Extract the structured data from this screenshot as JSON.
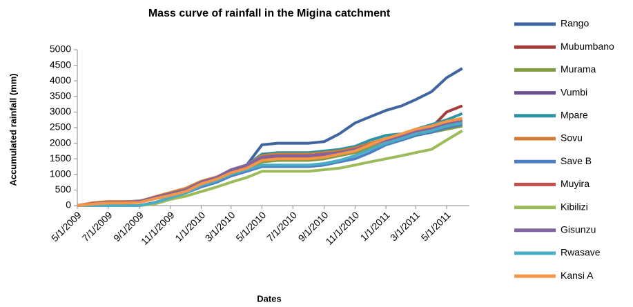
{
  "chart_data": {
    "type": "line",
    "title": "Mass curve of rainfall in the Migina catchment",
    "x_label": "Dates",
    "y_label": "Accumulated rainfall (mm)",
    "x": [
      "5/1/2009",
      "6/1/2009",
      "7/1/2009",
      "8/1/2009",
      "9/1/2009",
      "10/1/2009",
      "11/1/2009",
      "12/1/2009",
      "1/1/2010",
      "2/1/2010",
      "3/1/2010",
      "4/1/2010",
      "5/1/2010",
      "6/1/2010",
      "7/1/2010",
      "8/1/2010",
      "9/1/2010",
      "10/1/2010",
      "11/1/2010",
      "12/1/2010",
      "1/1/2011",
      "2/1/2011",
      "3/1/2011",
      "4/1/2011",
      "5/1/2011",
      "6/1/2011"
    ],
    "xlim": [
      "5/1/2009",
      "6/15/2011"
    ],
    "xticks": [
      "5/1/2009",
      "7/1/2009",
      "9/1/2009",
      "11/1/2009",
      "1/1/2010",
      "3/1/2010",
      "5/1/2010",
      "7/1/2010",
      "9/1/2010",
      "11/1/2010",
      "1/1/2011",
      "3/1/2011",
      "5/1/2011"
    ],
    "ylim": [
      0,
      5000
    ],
    "yticks": [
      0,
      500,
      1000,
      1500,
      2000,
      2500,
      3000,
      3500,
      4000,
      4500,
      5000
    ],
    "grid": false,
    "legend": "right",
    "series": [
      {
        "name": "Rango",
        "color": "#3f65a0",
        "values": [
          0,
          80,
          120,
          120,
          150,
          250,
          350,
          500,
          700,
          850,
          1100,
          1300,
          1950,
          2000,
          2000,
          2000,
          2050,
          2300,
          2650,
          2850,
          3050,
          3200,
          3400,
          3650,
          4100,
          4400
        ]
      },
      {
        "name": "Mubumbano",
        "color": "#a43d3a",
        "values": [
          0,
          60,
          100,
          100,
          120,
          250,
          350,
          450,
          700,
          850,
          1050,
          1250,
          1550,
          1600,
          1600,
          1600,
          1650,
          1700,
          1800,
          1950,
          2100,
          2200,
          2350,
          2500,
          3000,
          3200
        ]
      },
      {
        "name": "Murama",
        "color": "#7f9a3f",
        "values": [
          0,
          50,
          90,
          90,
          110,
          220,
          320,
          420,
          650,
          800,
          1000,
          1150,
          1400,
          1450,
          1450,
          1450,
          1500,
          1600,
          1700,
          1850,
          2000,
          2100,
          2250,
          2350,
          2450,
          2550
        ]
      },
      {
        "name": "Vumbi",
        "color": "#6b5090",
        "values": [
          0,
          60,
          100,
          100,
          120,
          240,
          350,
          480,
          720,
          880,
          1100,
          1250,
          1500,
          1550,
          1550,
          1550,
          1600,
          1700,
          1800,
          1950,
          2100,
          2200,
          2350,
          2450,
          2550,
          2650
        ]
      },
      {
        "name": "Mpare",
        "color": "#2e93a3",
        "values": [
          0,
          80,
          120,
          120,
          130,
          250,
          400,
          500,
          750,
          900,
          1150,
          1300,
          1650,
          1700,
          1700,
          1700,
          1750,
          1800,
          1900,
          2100,
          2250,
          2300,
          2450,
          2600,
          2750,
          2950
        ]
      },
      {
        "name": "Sovu",
        "color": "#d27b32",
        "values": [
          0,
          90,
          130,
          130,
          140,
          280,
          420,
          550,
          780,
          920,
          1150,
          1300,
          1600,
          1650,
          1650,
          1650,
          1700,
          1750,
          1850,
          2000,
          2150,
          2250,
          2400,
          2500,
          2650,
          2750
        ]
      },
      {
        "name": "Save B",
        "color": "#4c7ec4",
        "values": [
          0,
          0,
          0,
          0,
          0,
          100,
          250,
          400,
          600,
          750,
          950,
          1100,
          1250,
          1250,
          1250,
          1250,
          1300,
          1400,
          1500,
          1700,
          1950,
          2100,
          2250,
          2350,
          2500,
          2600
        ]
      },
      {
        "name": "Muyira",
        "color": "#c0504d",
        "values": [
          0,
          60,
          100,
          100,
          120,
          250,
          350,
          450,
          700,
          850,
          1050,
          1250,
          1500,
          1550,
          1550,
          1550,
          1600,
          1700,
          1800,
          1950,
          2100,
          2200,
          2350,
          2450,
          2550,
          2650
        ]
      },
      {
        "name": "Kibilizi",
        "color": "#9bbb59",
        "values": [
          0,
          0,
          0,
          0,
          0,
          50,
          200,
          300,
          450,
          600,
          750,
          900,
          1100,
          1100,
          1100,
          1100,
          1150,
          1200,
          1300,
          1400,
          1500,
          1600,
          1700,
          1800,
          2100,
          2400
        ]
      },
      {
        "name": "Gisunzu",
        "color": "#8064a2",
        "values": [
          0,
          60,
          100,
          100,
          130,
          260,
          380,
          500,
          750,
          900,
          1150,
          1300,
          1550,
          1600,
          1600,
          1600,
          1650,
          1700,
          1800,
          1950,
          2100,
          2250,
          2400,
          2500,
          2600,
          2700
        ]
      },
      {
        "name": "Rwasave",
        "color": "#4bacc6",
        "values": [
          0,
          0,
          0,
          0,
          0,
          100,
          250,
          400,
          650,
          800,
          1000,
          1150,
          1300,
          1300,
          1300,
          1300,
          1350,
          1450,
          1600,
          1800,
          2000,
          2150,
          2300,
          2400,
          2550,
          2650
        ]
      },
      {
        "name": "Kansi A",
        "color": "#f79646",
        "values": [
          0,
          50,
          80,
          80,
          100,
          220,
          330,
          450,
          700,
          850,
          1050,
          1200,
          1450,
          1500,
          1500,
          1500,
          1550,
          1650,
          1750,
          1950,
          2150,
          2300,
          2450,
          2550,
          2700,
          2800
        ]
      }
    ]
  }
}
